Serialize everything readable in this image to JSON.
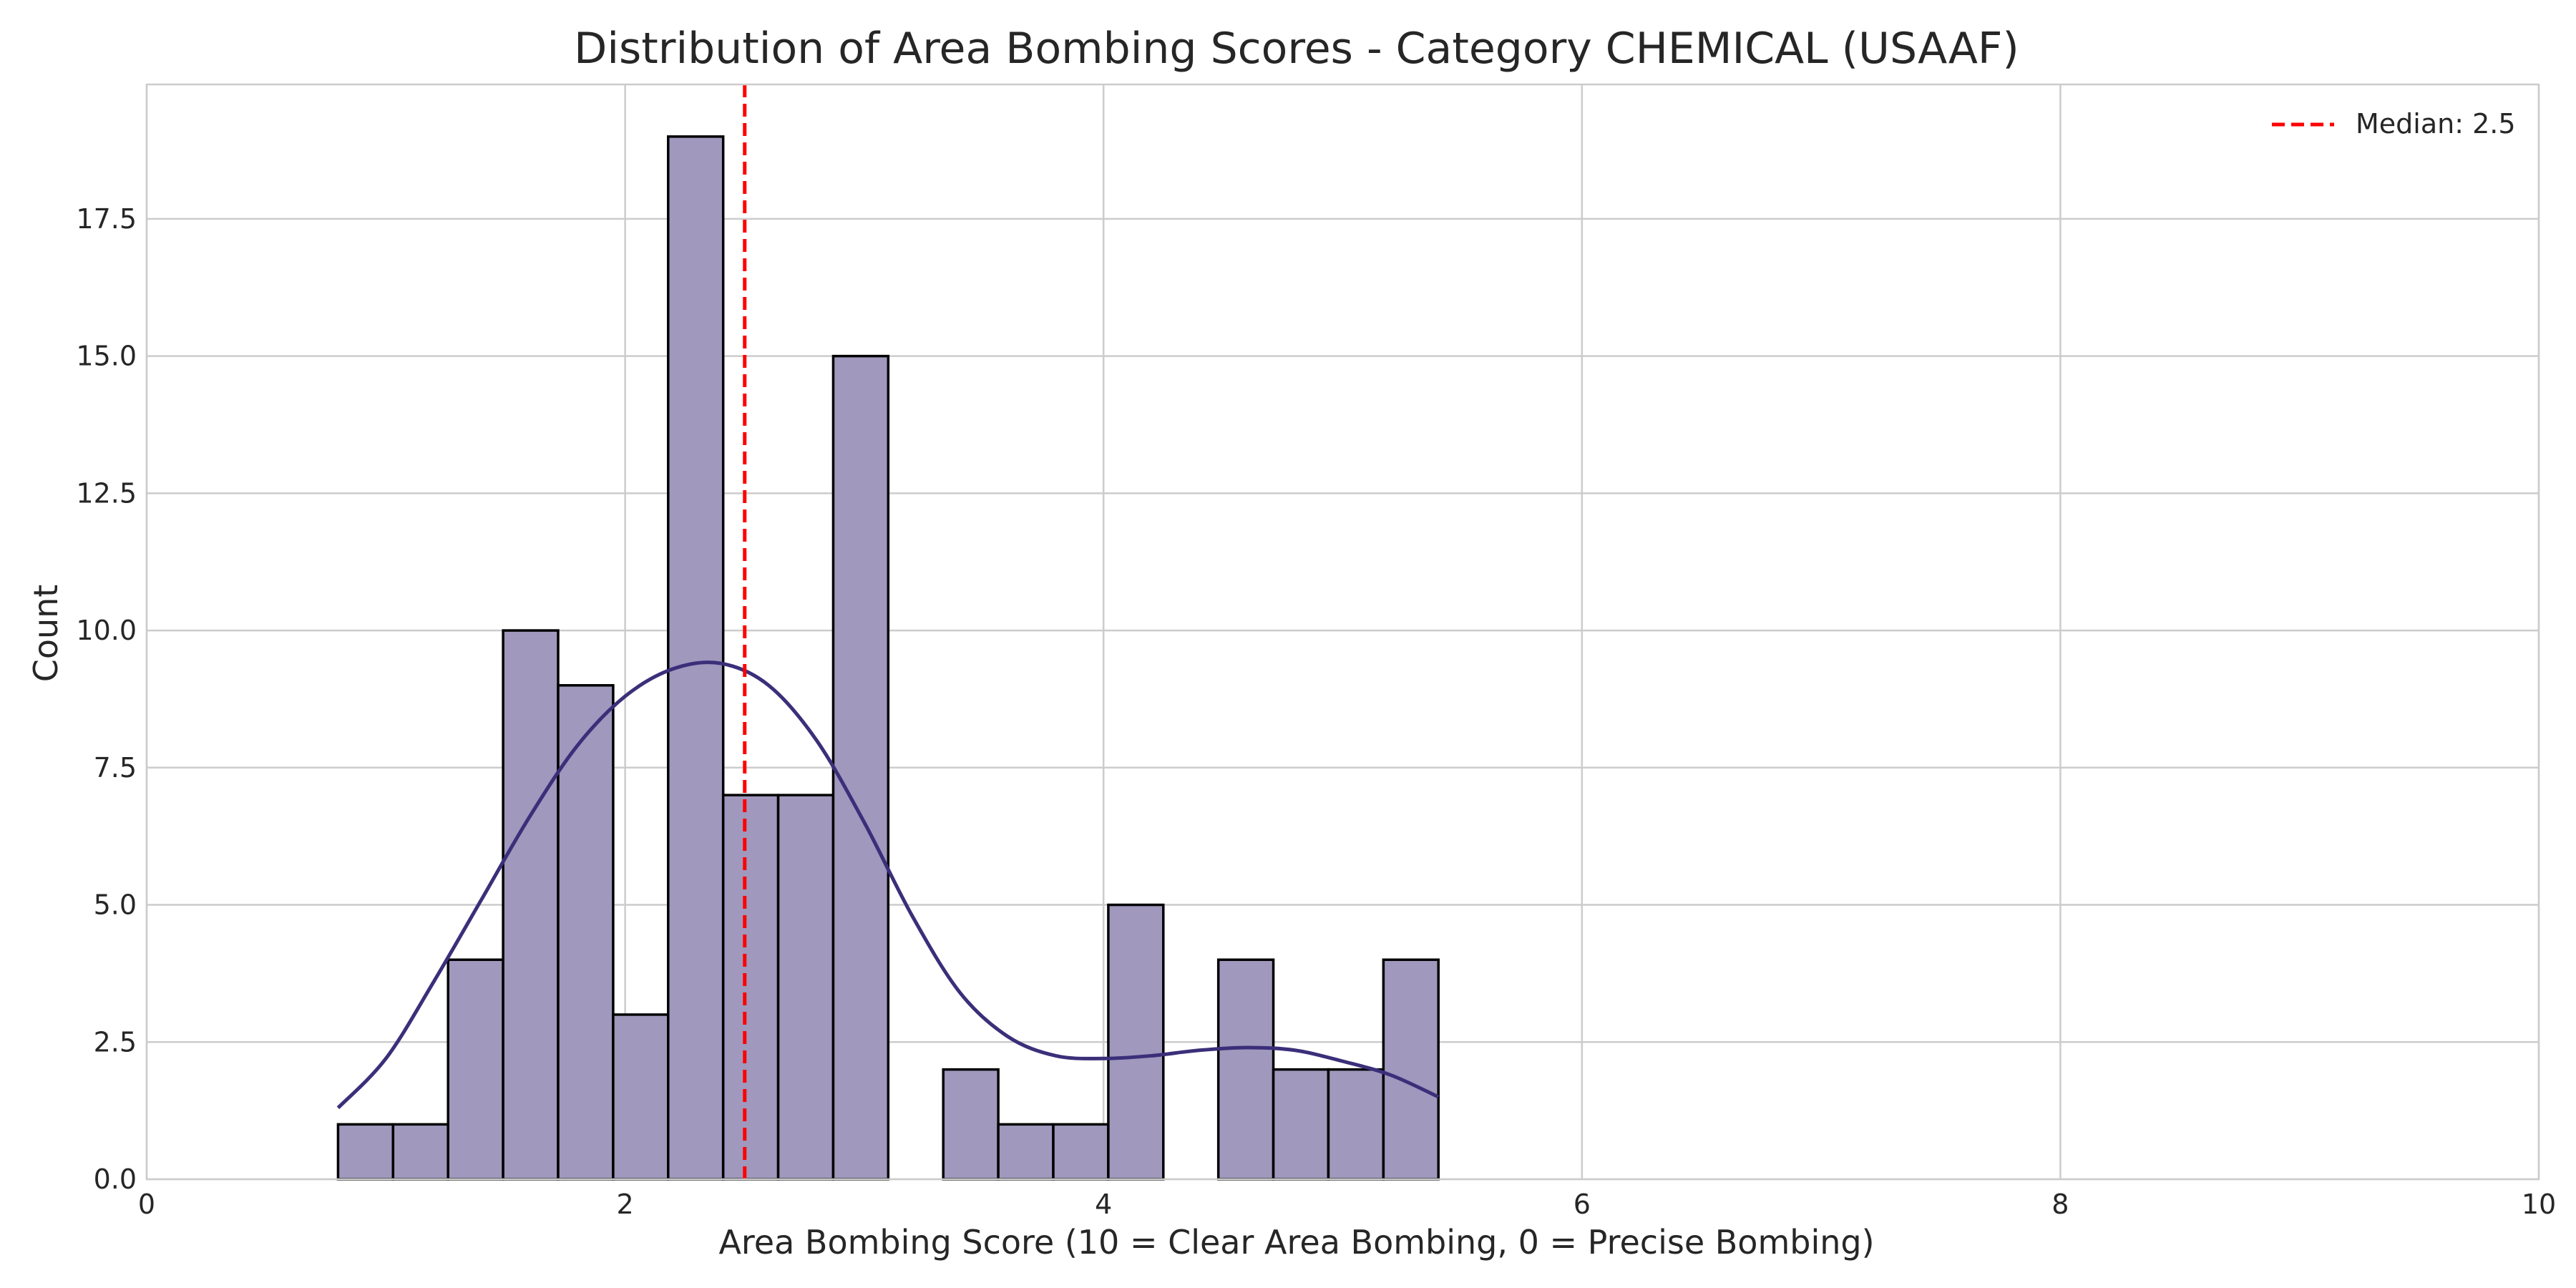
{
  "chart_data": {
    "type": "bar",
    "title": "Distribution of Area Bombing Scores - Category CHEMICAL (USAAF)",
    "xlabel": "Area Bombing Score (10 = Clear Area Bombing, 0 = Precise Bombing)",
    "ylabel": "Count",
    "xlim": [
      0,
      10
    ],
    "ylim": [
      0,
      19.95
    ],
    "x_ticks": [
      0,
      2,
      4,
      6,
      8,
      10
    ],
    "x_tick_labels": [
      "0",
      "2",
      "4",
      "6",
      "8",
      "10"
    ],
    "y_ticks": [
      0,
      2.5,
      5,
      7.5,
      10,
      12.5,
      15,
      17.5
    ],
    "y_tick_labels": [
      "0.0",
      "2.5",
      "5.0",
      "7.5",
      "10.0",
      "12.5",
      "15.0",
      "17.5"
    ],
    "grid": true,
    "bin_edges": [
      0.8,
      1.03,
      1.26,
      1.49,
      1.72,
      1.95,
      2.18,
      2.41,
      2.64,
      2.87,
      3.1,
      3.33,
      3.56,
      3.79,
      4.02,
      4.25,
      4.48,
      4.71,
      4.94,
      5.17,
      5.4
    ],
    "values": [
      1,
      1,
      4,
      10,
      9,
      3,
      19,
      7,
      7,
      15,
      0,
      2,
      1,
      1,
      5,
      0,
      4,
      2,
      2,
      4
    ],
    "bar_color": "#a098bd",
    "bar_edge_color": "#000000",
    "kde": {
      "color": "#3b2f7a",
      "x": [
        0.8,
        1.0,
        1.2,
        1.4,
        1.6,
        1.8,
        2.0,
        2.2,
        2.4,
        2.6,
        2.8,
        3.0,
        3.2,
        3.4,
        3.6,
        3.8,
        4.0,
        4.2,
        4.4,
        4.6,
        4.8,
        5.0,
        5.2,
        5.4
      ],
      "y": [
        1.3,
        2.2,
        3.6,
        5.1,
        6.6,
        7.9,
        8.8,
        9.3,
        9.4,
        9.0,
        8.0,
        6.5,
        4.8,
        3.4,
        2.6,
        2.25,
        2.2,
        2.25,
        2.35,
        2.4,
        2.35,
        2.15,
        1.9,
        1.5
      ]
    },
    "median": {
      "value": 2.5,
      "label": "Median: 2.5",
      "color": "#ff0000"
    },
    "legend_position": "top-right"
  }
}
